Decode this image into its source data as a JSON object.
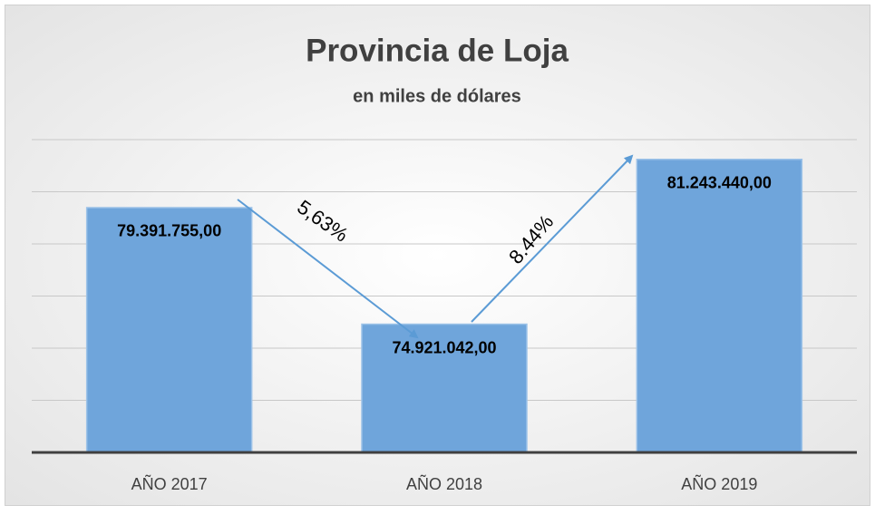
{
  "chart_data": {
    "type": "bar",
    "title": "Provincia de Loja",
    "subtitle": "en miles de dólares",
    "categories": [
      "AÑO 2017",
      "AÑO 2018",
      "AÑO 2019"
    ],
    "values": [
      79391755,
      74921042,
      81243440
    ],
    "value_labels": [
      "79.391.755,00",
      "74.921.042,00",
      "81.243.440,00"
    ],
    "color": "#6fa5db",
    "ylim": [
      70000000,
      82000000
    ],
    "yticks": [
      70000000,
      72000000,
      74000000,
      76000000,
      78000000,
      80000000,
      82000000
    ],
    "grid": true,
    "annotations": [
      {
        "text": "5,63%"
      },
      {
        "text": "8.44%"
      }
    ]
  }
}
